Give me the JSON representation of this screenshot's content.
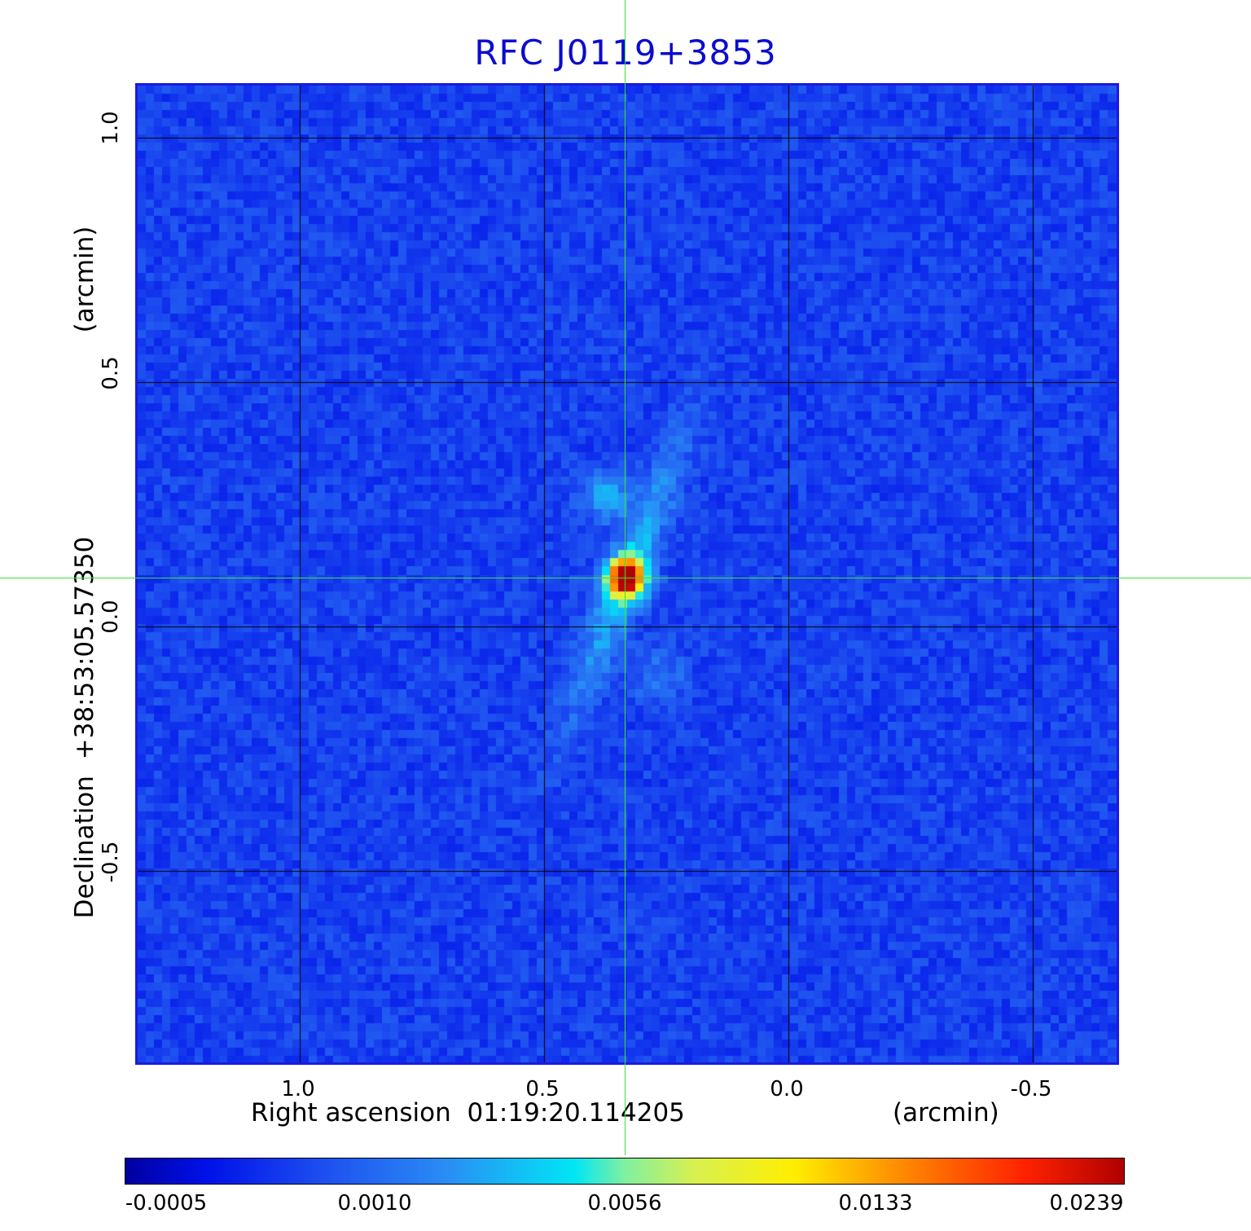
{
  "title": "RFC J0119+3853",
  "x_axis": {
    "label": "Right ascension  01:19:20.114205",
    "unit": "(arcmin)",
    "ticks": [
      "1.0",
      "0.5",
      "0.0",
      "-0.5"
    ]
  },
  "y_axis": {
    "label": "Declination  +38:53:05.57350",
    "unit": "(arcmin)",
    "ticks": [
      "1.0",
      "0.5",
      "0.0",
      "-0.5"
    ]
  },
  "colorbar": {
    "labels": [
      "-0.0005",
      "0.0010",
      "0.0056",
      "0.0133",
      "0.0239"
    ]
  },
  "colors": {
    "title": "#0b0bd0",
    "frame": "#1a1ae0",
    "crosshair": "#3ce03c",
    "background_noise": "#1e50f0",
    "peak": "#c00000"
  }
}
